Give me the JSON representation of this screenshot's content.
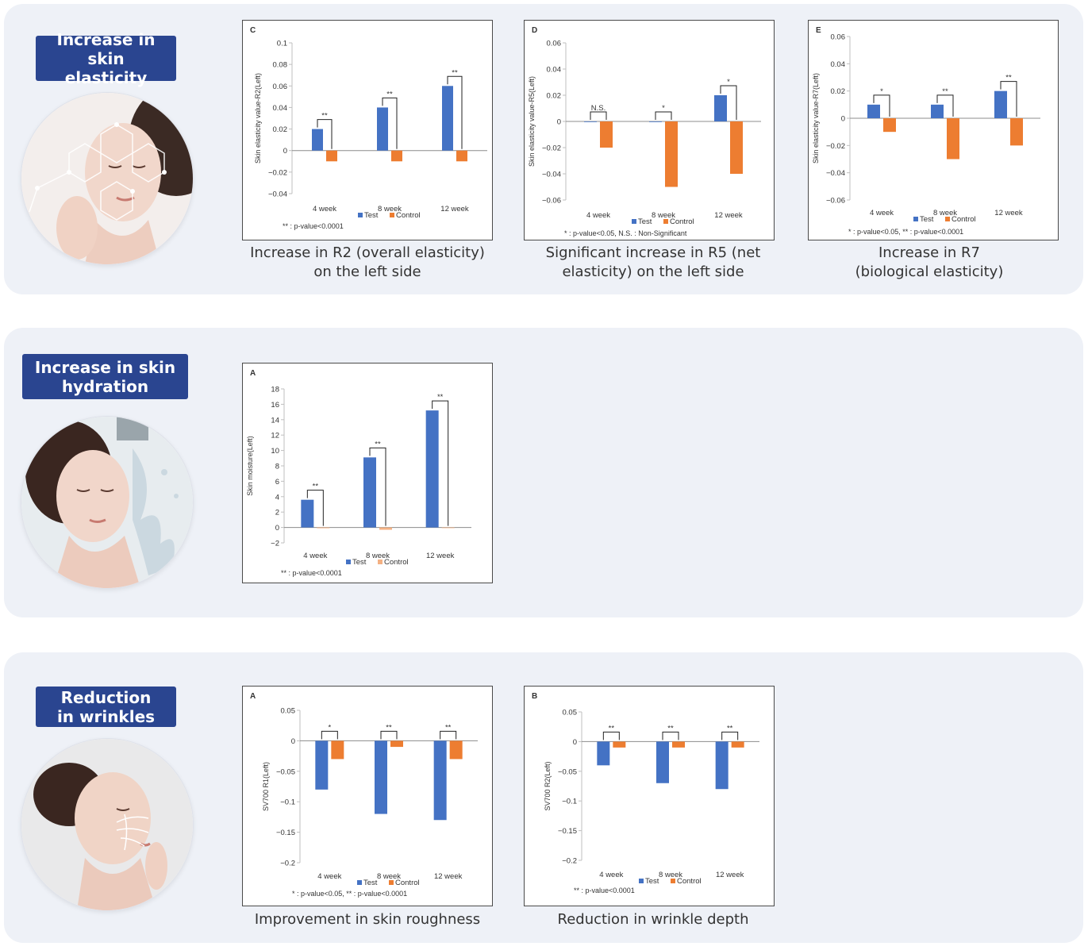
{
  "sections": [
    {
      "badge": "Increase in skin\nelasticity",
      "image_icon": "face-elasticity-icon"
    },
    {
      "badge": "Increase in skin\nhydration",
      "image_icon": "face-water-splash-icon"
    },
    {
      "badge": "Reduction\nin wrinkles",
      "image_icon": "face-wrinkle-lines-icon"
    }
  ],
  "captions": {
    "c": "Increase in R2 (overall elasticity)\non the left side",
    "d": "Significant increase in R5 (net\nelasticity) on the left side",
    "e": "Increase in R7\n(biological elasticity)",
    "wa": "Improvement in skin roughness",
    "wb": "Reduction in wrinkle depth"
  },
  "colors": {
    "test": "#4472c4",
    "control": "#ed7d31",
    "control_light": "#f4b183"
  },
  "chart_data": [
    {
      "id": "c",
      "type": "bar",
      "panel_label": "C",
      "ylabel": "Skin elasticity value-R2(Left)",
      "categories": [
        "4 week",
        "8 week",
        "12 week"
      ],
      "series": [
        {
          "name": "Test",
          "values": [
            0.02,
            0.04,
            0.06
          ]
        },
        {
          "name": "Control",
          "values": [
            -0.01,
            -0.01,
            -0.01
          ]
        }
      ],
      "ylim": [
        -0.04,
        0.1
      ],
      "yticks": [
        "0.1",
        "0.08",
        "0.06",
        "0.04",
        "0.02",
        "0",
        "−0.02",
        "−0.04"
      ],
      "significance": [
        "**",
        "**",
        "**"
      ],
      "footnote": "** : p-value<0.0001"
    },
    {
      "id": "d",
      "type": "bar",
      "panel_label": "D",
      "ylabel": "Skin elasticity value-R5(Left)",
      "categories": [
        "4 week",
        "8 week",
        "12 week"
      ],
      "series": [
        {
          "name": "Test",
          "values": [
            0,
            0,
            0.02
          ]
        },
        {
          "name": "Control",
          "values": [
            -0.02,
            -0.05,
            -0.04
          ]
        }
      ],
      "ylim": [
        -0.06,
        0.06
      ],
      "yticks": [
        "0.06",
        "0.04",
        "0.02",
        "0",
        "−0.02",
        "−0.04",
        "−0.06"
      ],
      "significance": [
        "N.S.",
        "*",
        "*"
      ],
      "footnote": "* : p-value<0.05, N.S. : Non-Significant"
    },
    {
      "id": "e",
      "type": "bar",
      "panel_label": "E",
      "ylabel": "Skin elasticity value-R7(Left)",
      "categories": [
        "4 week",
        "8 week",
        "12 week"
      ],
      "series": [
        {
          "name": "Test",
          "values": [
            0.01,
            0.01,
            0.02
          ]
        },
        {
          "name": "Control",
          "values": [
            -0.01,
            -0.03,
            -0.02
          ]
        }
      ],
      "ylim": [
        -0.06,
        0.06
      ],
      "yticks": [
        "0.06",
        "0.04",
        "0.02",
        "0",
        "−0.02",
        "−0.04",
        "−0.06"
      ],
      "significance": [
        "*",
        "**",
        "**"
      ],
      "footnote": "* : p-value<0.05, ** : p-value<0.0001"
    },
    {
      "id": "h",
      "type": "bar",
      "panel_label": "A",
      "ylabel": "Skin moisture(Left)",
      "categories": [
        "4 week",
        "8 week",
        "12 week"
      ],
      "series": [
        {
          "name": "Test",
          "values": [
            3.6,
            9.1,
            15.2
          ]
        },
        {
          "name": "Control",
          "values": [
            -0.1,
            -0.3,
            0
          ]
        }
      ],
      "ylim": [
        -2,
        18
      ],
      "yticks": [
        "18",
        "16",
        "14",
        "12",
        "10",
        "8",
        "6",
        "4",
        "2",
        "0",
        "−2"
      ],
      "significance": [
        "**",
        "**",
        "**"
      ],
      "footnote": "** : p-value<0.0001"
    },
    {
      "id": "wa",
      "type": "bar",
      "panel_label": "A",
      "ylabel": "SV700 R1(Left)",
      "categories": [
        "4 week",
        "8 week",
        "12 week"
      ],
      "series": [
        {
          "name": "Test",
          "values": [
            -0.08,
            -0.12,
            -0.13
          ]
        },
        {
          "name": "Control",
          "values": [
            -0.03,
            -0.01,
            -0.03
          ]
        }
      ],
      "ylim": [
        -0.2,
        0.05
      ],
      "yticks": [
        "0.05",
        "0",
        "−0.05",
        "−0.1",
        "−0.15",
        "−0.2"
      ],
      "significance": [
        "*",
        "**",
        "**"
      ],
      "footnote": "* : p-value<0.05, ** : p-value<0.0001"
    },
    {
      "id": "wb",
      "type": "bar",
      "panel_label": "B",
      "ylabel": "SV700 R2(Left)",
      "categories": [
        "4 week",
        "8 week",
        "12 week"
      ],
      "series": [
        {
          "name": "Test",
          "values": [
            -0.04,
            -0.07,
            -0.08
          ]
        },
        {
          "name": "Control",
          "values": [
            -0.01,
            -0.01,
            -0.01
          ]
        }
      ],
      "ylim": [
        -0.2,
        0.05
      ],
      "yticks": [
        "0.05",
        "0",
        "−0.05",
        "−0.1",
        "−0.15",
        "−0.2"
      ],
      "significance": [
        "**",
        "**",
        "**"
      ],
      "footnote": "** : p-value<0.0001"
    }
  ]
}
